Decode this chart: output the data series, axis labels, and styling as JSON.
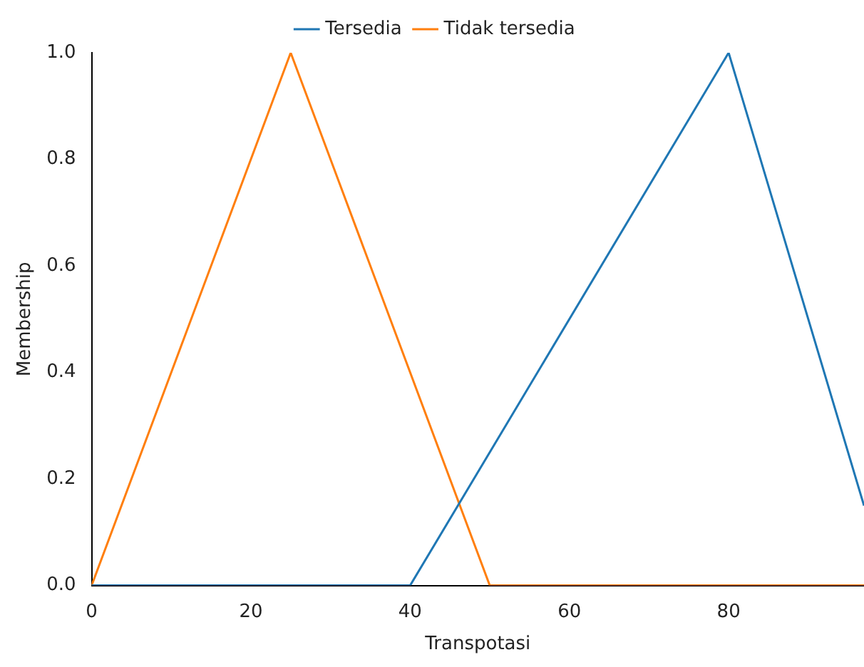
{
  "chart_data": {
    "type": "line",
    "xlabel": "Transpotasi",
    "ylabel": "Membership",
    "series": [
      {
        "name": "Tersedia",
        "color": "#1f77b4",
        "x": [
          0,
          40,
          80,
          97
        ],
        "values": [
          0,
          0,
          1,
          0.15
        ]
      },
      {
        "name": "Tidak tersedia",
        "color": "#ff7f0e",
        "x": [
          0,
          25,
          50,
          97
        ],
        "values": [
          0,
          1,
          0,
          0
        ]
      }
    ],
    "xlim": [
      0,
      97
    ],
    "xticks": [
      0,
      20,
      40,
      60,
      80
    ],
    "ylim": [
      0,
      1
    ],
    "yticks": [
      {
        "value": 0,
        "label": "0.0"
      },
      {
        "value": 0.2,
        "label": "0.2"
      },
      {
        "value": 0.4,
        "label": "0.4"
      },
      {
        "value": 0.6,
        "label": "0.6"
      },
      {
        "value": 0.8,
        "label": "0.8"
      },
      {
        "value": 1,
        "label": "1.0"
      }
    ],
    "grid": false,
    "legend": "top",
    "marker": "none",
    "line_style": "solid"
  }
}
